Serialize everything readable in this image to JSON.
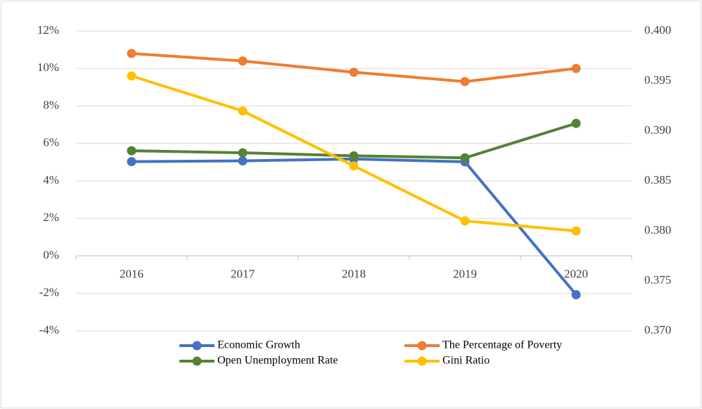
{
  "chart_data": {
    "type": "line",
    "categories": [
      "2016",
      "2017",
      "2018",
      "2019",
      "2020"
    ],
    "series": [
      {
        "name": "Economic Growth",
        "color": "#4472c4",
        "values": [
          5.03,
          5.07,
          5.17,
          5.02,
          -2.07
        ]
      },
      {
        "name": "The Percentage of Poverty",
        "color": "#ed7d31",
        "values": [
          10.8,
          10.4,
          9.8,
          9.3,
          10.0
        ]
      },
      {
        "name": "Open Unemployment Rate",
        "color": "#548235",
        "values": [
          5.61,
          5.5,
          5.34,
          5.23,
          7.07
        ]
      },
      {
        "name": "Gini Ratio",
        "color": "#ffc000",
        "axis": "y2",
        "values": [
          0.3955,
          0.392,
          0.3865,
          0.381,
          0.38
        ]
      }
    ],
    "ylim": [
      -4,
      12
    ],
    "yticks": [
      {
        "value": -4,
        "label": "-4%"
      },
      {
        "value": -2,
        "label": "-2%"
      },
      {
        "value": 0,
        "label": "0%"
      },
      {
        "value": 2,
        "label": "2%"
      },
      {
        "value": 4,
        "label": "4%"
      },
      {
        "value": 6,
        "label": "6%"
      },
      {
        "value": 8,
        "label": "8%"
      },
      {
        "value": 10,
        "label": "10%"
      },
      {
        "value": 12,
        "label": "12%"
      }
    ],
    "y2lim": [
      0.37,
      0.4
    ],
    "y2ticks": [
      {
        "value": 0.37,
        "label": "0.370"
      },
      {
        "value": 0.375,
        "label": "0.375"
      },
      {
        "value": 0.38,
        "label": "0.380"
      },
      {
        "value": 0.385,
        "label": "0.385"
      },
      {
        "value": 0.39,
        "label": "0.390"
      },
      {
        "value": 0.395,
        "label": "0.395"
      },
      {
        "value": 0.4,
        "label": "0.400"
      }
    ],
    "grid": true
  }
}
